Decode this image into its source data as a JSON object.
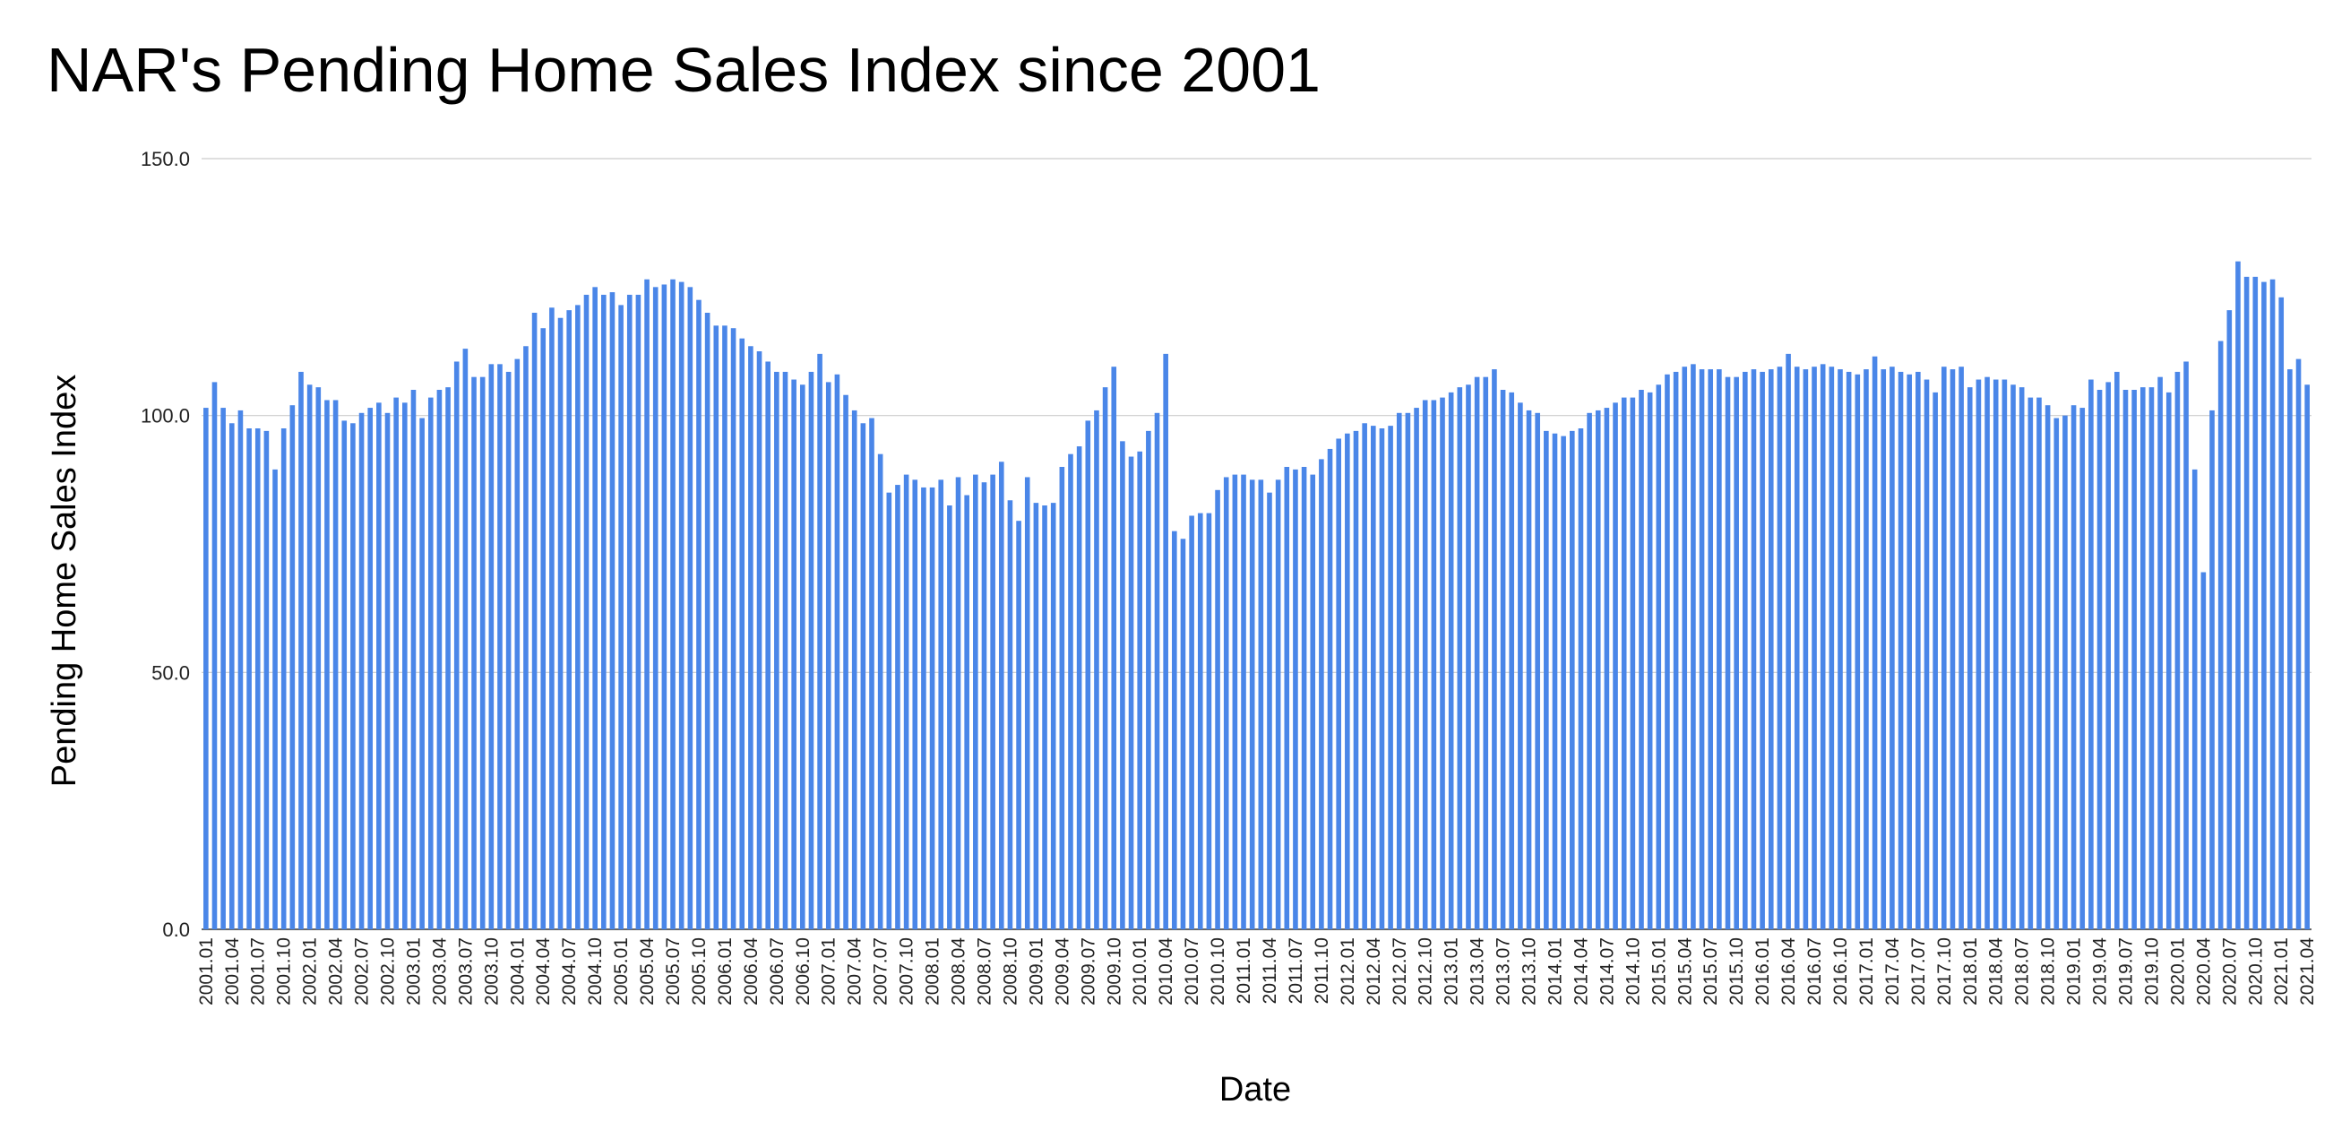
{
  "chart_data": {
    "type": "bar",
    "title": "NAR's Pending Home Sales Index since 2001",
    "xlabel": "Date",
    "ylabel": "Pending Home Sales Index",
    "ylim": [
      0,
      150
    ],
    "yticks": [
      "0.0",
      "50.0",
      "100.0",
      "150.0"
    ],
    "grid": true,
    "bar_color": "#4a86e8",
    "grid_color": "#cccccc",
    "x_tick_labels": [
      "2001.01",
      "2001.04",
      "2001.07",
      "2001.10",
      "2002.01",
      "2002.04",
      "2002.07",
      "2002.10",
      "2003.01",
      "2003.04",
      "2003.07",
      "2003.10",
      "2004.01",
      "2004.04",
      "2004.07",
      "2004.10",
      "2005.01",
      "2005.04",
      "2005.07",
      "2005.10",
      "2006.01",
      "2006.04",
      "2006.07",
      "2006.10",
      "2007.01",
      "2007.04",
      "2007.07",
      "2007.10",
      "2008.01",
      "2008.04",
      "2008.07",
      "2008.10",
      "2009.01",
      "2009.04",
      "2009.07",
      "2009.10",
      "2010.01",
      "2010.04",
      "2010.07",
      "2010.10",
      "2011.01",
      "2011.04",
      "2011.07",
      "2011.10",
      "2012.01",
      "2012.04",
      "2012.07",
      "2012.10",
      "2013.01",
      "2013.04",
      "2013.07",
      "2013.10",
      "2014.01",
      "2014.04",
      "2014.07",
      "2014.10",
      "2015.01",
      "2015.04",
      "2015.07",
      "2015.10",
      "2016.01",
      "2016.04",
      "2016.07",
      "2016.10",
      "2017.01",
      "2017.04",
      "2017.07",
      "2017.10",
      "2018.01",
      "2018.04",
      "2018.07",
      "2018.10",
      "2019.01",
      "2019.04",
      "2019.07",
      "2019.10",
      "2020.01",
      "2020.04",
      "2020.07",
      "2020.10",
      "2021.01",
      "2021.04"
    ],
    "values": [
      101.5,
      106.5,
      101.5,
      98.5,
      101.0,
      97.5,
      97.5,
      97.0,
      89.5,
      97.5,
      102.0,
      108.5,
      106.0,
      105.5,
      103.0,
      103.0,
      99.0,
      98.5,
      100.5,
      101.5,
      102.5,
      100.5,
      103.5,
      102.5,
      105.0,
      99.5,
      103.5,
      105.0,
      105.5,
      110.5,
      113.0,
      107.5,
      107.5,
      110.0,
      110.0,
      108.5,
      111.0,
      113.5,
      120.0,
      117.0,
      121.0,
      119.0,
      120.5,
      121.5,
      123.5,
      125.0,
      123.5,
      124.0,
      121.5,
      123.5,
      123.5,
      126.5,
      125.0,
      125.5,
      126.5,
      126.0,
      125.0,
      122.5,
      120.0,
      117.5,
      117.5,
      117.0,
      115.0,
      113.5,
      112.5,
      110.5,
      108.5,
      108.5,
      107.0,
      106.0,
      108.5,
      112.0,
      106.5,
      108.0,
      104.0,
      101.0,
      98.5,
      99.5,
      92.5,
      85.0,
      86.5,
      88.5,
      87.5,
      86.0,
      86.0,
      87.5,
      82.5,
      88.0,
      84.5,
      88.5,
      87.0,
      88.5,
      91.0,
      83.5,
      79.5,
      88.0,
      83.0,
      82.5,
      83.0,
      90.0,
      92.5,
      94.0,
      99.0,
      101.0,
      105.5,
      109.5,
      95.0,
      92.0,
      93.0,
      97.0,
      100.5,
      112.0,
      77.5,
      76.0,
      80.5,
      81.0,
      81.0,
      85.5,
      88.0,
      88.5,
      88.5,
      87.5,
      87.5,
      85.0,
      87.5,
      90.0,
      89.5,
      90.0,
      88.5,
      91.5,
      93.5,
      95.5,
      96.5,
      97.0,
      98.5,
      98.0,
      97.5,
      98.0,
      100.5,
      100.5,
      101.5,
      103.0,
      103.0,
      103.5,
      104.5,
      105.5,
      106.0,
      107.5,
      107.5,
      109.0,
      105.0,
      104.5,
      102.5,
      101.0,
      100.5,
      97.0,
      96.5,
      96.0,
      97.0,
      97.5,
      100.5,
      101.0,
      101.5,
      102.5,
      103.5,
      103.5,
      105.0,
      104.5,
      106.0,
      108.0,
      108.5,
      109.5,
      110.0,
      109.0,
      109.0,
      109.0,
      107.5,
      107.5,
      108.5,
      109.0,
      108.5,
      109.0,
      109.5,
      112.0,
      109.5,
      109.0,
      109.5,
      110.0,
      109.5,
      109.0,
      108.5,
      108.0,
      109.0,
      111.5,
      109.0,
      109.5,
      108.5,
      108.0,
      108.5,
      107.0,
      104.5,
      109.5,
      109.0,
      109.5,
      105.5,
      107.0,
      107.5,
      107.0,
      107.0,
      106.0,
      105.5,
      103.5,
      103.5,
      102.0,
      99.5,
      100.0,
      102.0,
      101.5,
      107.0,
      105.0,
      106.5,
      108.5,
      105.0,
      105.0,
      105.5,
      105.5,
      107.5,
      104.5,
      108.5,
      110.5,
      89.5,
      69.5,
      101.0,
      114.5,
      120.5,
      130.0,
      127.0,
      127.0,
      126.0,
      126.5,
      123.0,
      109.0,
      111.0,
      106.0
    ]
  }
}
